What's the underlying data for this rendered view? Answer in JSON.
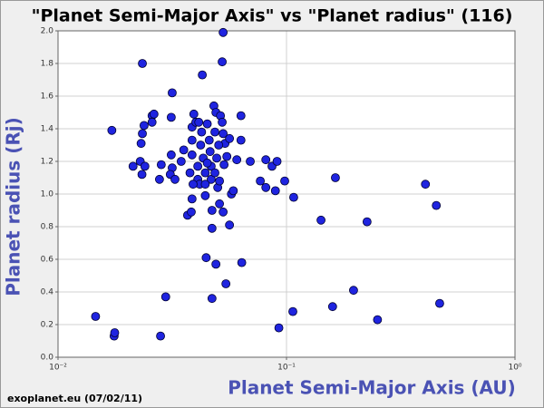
{
  "chart_data": {
    "type": "scatter",
    "title": "\"Planet Semi-Major Axis\"  vs \"Planet radius\" (116)",
    "x_label": "Planet Semi-Major Axis (AU)",
    "y_label": "Planet radius (Rj)",
    "source": "exoplanet.eu (07/02/11)",
    "x_scale": "log",
    "grid": true,
    "color": "#1f24e0",
    "xlim": [
      0.01,
      1
    ],
    "ylim": [
      0,
      2
    ],
    "xticks": [
      {
        "value": 0.01,
        "label": "10⁻²"
      },
      {
        "value": 0.1,
        "label": "10⁻¹"
      },
      {
        "value": 1,
        "label": "10⁰"
      }
    ],
    "yticks": [
      {
        "value": 0,
        "label": "0.0"
      },
      0.2,
      0.4,
      0.6,
      0.8,
      {
        "value": 1,
        "label": "1.0"
      },
      1.2,
      1.4,
      1.6,
      1.8,
      {
        "value": 2,
        "label": "2.0"
      }
    ],
    "x": [
      0.0146,
      0.0176,
      0.0177,
      0.0172,
      0.0234,
      0.0213,
      0.0229,
      0.0233,
      0.024,
      0.0231,
      0.0234,
      0.0238,
      0.0258,
      0.0263,
      0.0258,
      0.0278,
      0.0283,
      0.0281,
      0.0296,
      0.0313,
      0.0316,
      0.0313,
      0.0316,
      0.031,
      0.0325,
      0.0369,
      0.0383,
      0.0386,
      0.0393,
      0.0386,
      0.0386,
      0.0386,
      0.0401,
      0.0409,
      0.0409,
      0.0417,
      0.0413,
      0.0421,
      0.0428,
      0.0432,
      0.0441,
      0.0441,
      0.0445,
      0.045,
      0.0459,
      0.0463,
      0.0468,
      0.0468,
      0.0472,
      0.0472,
      0.0472,
      0.0481,
      0.0486,
      0.0491,
      0.0491,
      0.0495,
      0.05,
      0.0509,
      0.0509,
      0.0514,
      0.0523,
      0.0528,
      0.0528,
      0.0523,
      0.0528,
      0.0533,
      0.0538,
      0.0543,
      0.0548,
      0.0563,
      0.0563,
      0.0574,
      0.0585,
      0.0606,
      0.0632,
      0.0632,
      0.0637,
      0.0694,
      0.0768,
      0.0812,
      0.0812,
      0.0864,
      0.0894,
      0.0909,
      0.0926,
      0.0982,
      0.1066,
      0.1075,
      0.1416,
      0.1591,
      0.1637,
      0.1965,
      0.2252,
      0.2502,
      0.4056,
      0.4525,
      0.4681,
      0.0346,
      0.0355,
      0.0378,
      0.0425,
      0.045,
      0.0486,
      0.0505,
      0.0441,
      0.039
    ],
    "values": [
      0.25,
      0.13,
      0.15,
      1.39,
      1.8,
      1.17,
      1.2,
      1.12,
      1.17,
      1.31,
      1.37,
      1.42,
      1.48,
      1.49,
      1.44,
      1.09,
      1.18,
      0.13,
      0.37,
      1.47,
      1.62,
      1.24,
      1.16,
      1.12,
      1.09,
      0.87,
      0.89,
      0.97,
      1.49,
      1.41,
      1.33,
      1.24,
      1.44,
      1.17,
      1.09,
      1.06,
      1.44,
      1.3,
      1.73,
      1.22,
      1.13,
      0.99,
      0.61,
      1.43,
      1.33,
      1.26,
      1.17,
      1.09,
      0.9,
      0.79,
      0.36,
      1.54,
      1.38,
      1.5,
      0.57,
      1.22,
      1.04,
      1.08,
      0.94,
      1.48,
      1.44,
      1.37,
      1.99,
      1.81,
      0.89,
      1.18,
      1.31,
      0.45,
      1.23,
      1.34,
      0.81,
      1,
      1.02,
      1.21,
      1.48,
      1.33,
      0.58,
      1.2,
      1.08,
      1.21,
      1.04,
      1.17,
      1.02,
      1.2,
      0.18,
      1.08,
      0.28,
      0.98,
      0.84,
      0.31,
      1.1,
      0.41,
      0.83,
      0.23,
      1.06,
      0.93,
      0.33,
      1.2,
      1.27,
      1.13,
      1.38,
      1.19,
      1.13,
      1.3,
      1.06,
      1.06
    ]
  }
}
